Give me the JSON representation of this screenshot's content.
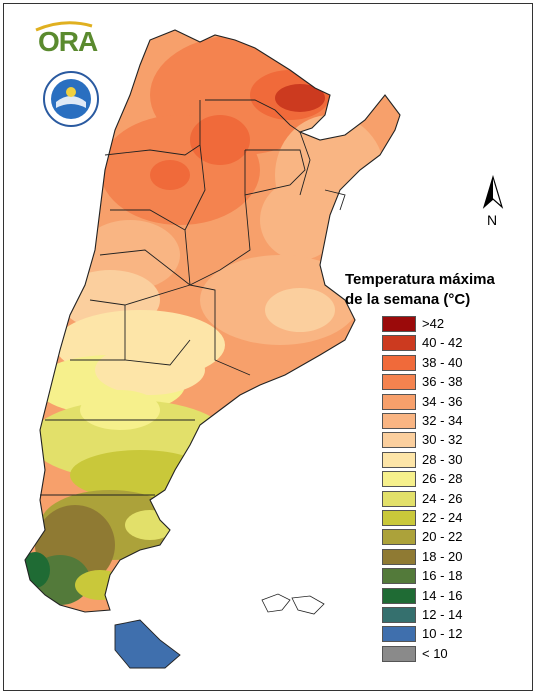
{
  "header": {
    "logo_text": "ORA"
  },
  "north_arrow": {
    "label": "N"
  },
  "legend": {
    "title_line1": "Temperatura máxima",
    "title_line2": "de la semana (°C)",
    "items": [
      {
        "label": ">42",
        "color": "#9b0a0a"
      },
      {
        "label": "40 - 42",
        "color": "#cc3a1f"
      },
      {
        "label": "38 - 40",
        "color": "#f06a3a"
      },
      {
        "label": "36 - 38",
        "color": "#f4834f"
      },
      {
        "label": "34 - 36",
        "color": "#f7a06b"
      },
      {
        "label": "32 - 34",
        "color": "#f9b583"
      },
      {
        "label": "30 - 32",
        "color": "#fbcf9e"
      },
      {
        "label": "28 - 30",
        "color": "#fde5a8"
      },
      {
        "label": "26 - 28",
        "color": "#f6f08c"
      },
      {
        "label": "24 - 26",
        "color": "#e2e06a"
      },
      {
        "label": "22 - 24",
        "color": "#c9c83a"
      },
      {
        "label": "20 - 22",
        "color": "#aca23a"
      },
      {
        "label": "18 - 20",
        "color": "#8f7a33"
      },
      {
        "label": "16 - 18",
        "color": "#537a3a"
      },
      {
        "label": "14 - 16",
        "color": "#1f6b34"
      },
      {
        "label": "12 - 14",
        "color": "#35706e"
      },
      {
        "label": "10 - 12",
        "color": "#3f6fad"
      },
      {
        "label": "< 10",
        "color": "#8a8a8a"
      }
    ]
  }
}
